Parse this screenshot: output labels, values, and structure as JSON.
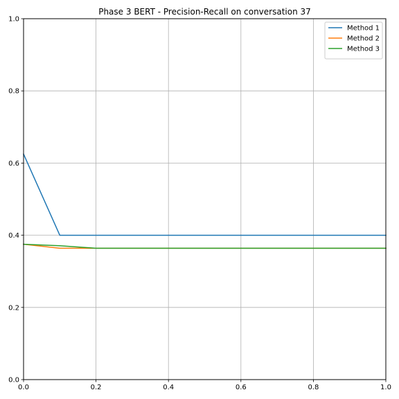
{
  "chart_data": {
    "type": "line",
    "title": "Phase 3 BERT - Precision-Recall on conversation 37",
    "xlabel": "",
    "ylabel": "",
    "xlim": [
      0.0,
      1.0
    ],
    "ylim": [
      0.0,
      1.0
    ],
    "grid": true,
    "legend_position": "top-right",
    "x_ticks": [
      "0.0",
      "0.2",
      "0.4",
      "0.6",
      "0.8",
      "1.0"
    ],
    "y_ticks": [
      "0.0",
      "0.2",
      "0.4",
      "0.6",
      "0.8",
      "1.0"
    ],
    "series": [
      {
        "name": "Method 1",
        "color": "#1f77b4",
        "x": [
          0.0,
          0.1,
          0.2,
          0.4,
          0.6,
          0.8,
          1.0
        ],
        "y": [
          0.625,
          0.4,
          0.4,
          0.4,
          0.4,
          0.4,
          0.4
        ]
      },
      {
        "name": "Method 2",
        "color": "#ff7f0e",
        "x": [
          0.0,
          0.1,
          0.2,
          0.4,
          0.6,
          0.8,
          1.0
        ],
        "y": [
          0.375,
          0.364,
          0.364,
          0.364,
          0.364,
          0.364,
          0.364
        ]
      },
      {
        "name": "Method 3",
        "color": "#2ca02c",
        "x": [
          0.0,
          0.1,
          0.2,
          0.4,
          0.6,
          0.8,
          1.0
        ],
        "y": [
          0.375,
          0.371,
          0.364,
          0.364,
          0.364,
          0.364,
          0.364
        ]
      }
    ]
  }
}
